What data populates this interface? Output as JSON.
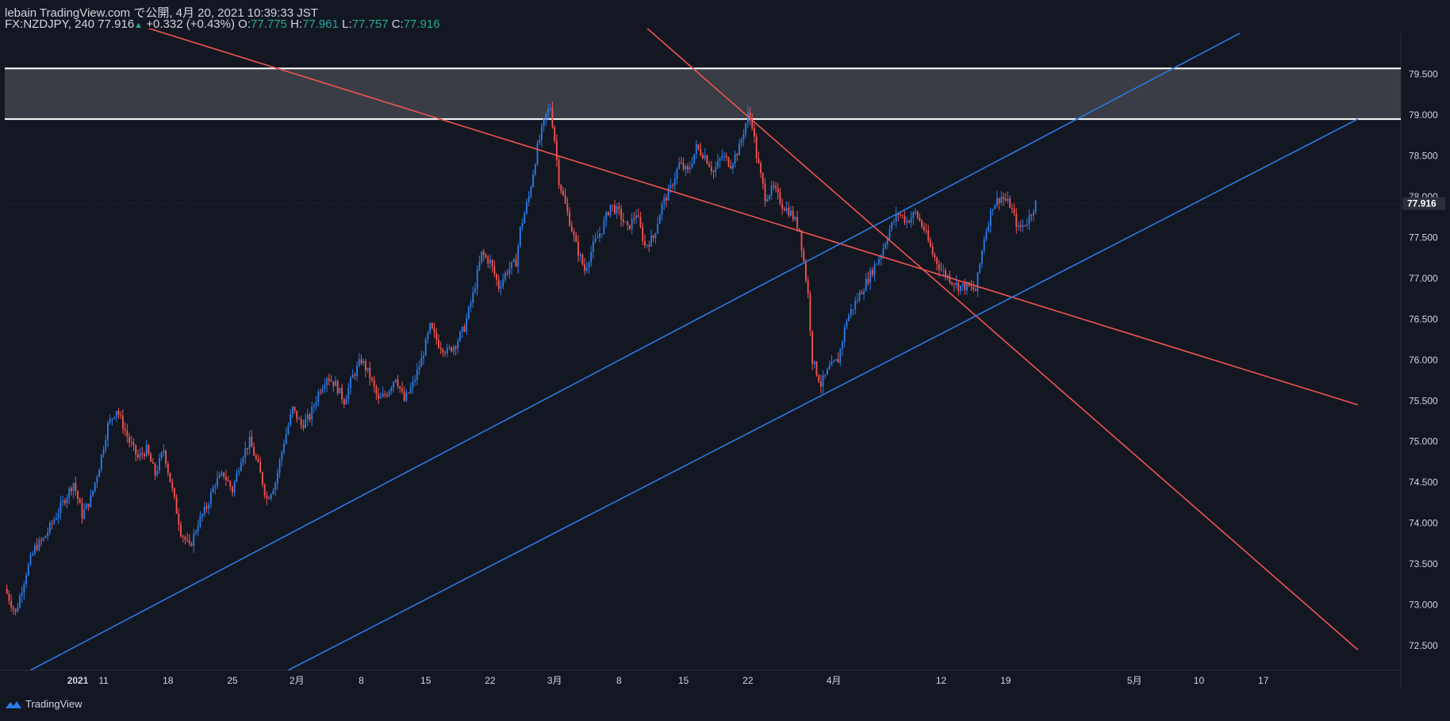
{
  "header": {
    "line1": "lebain TradingView.com で公開, 4月 20, 2021 10:39:33 JST",
    "symbol": "FX:NZDJPY, 240",
    "last": "77.916",
    "change": "+0.332 (+0.43%)",
    "o_label": "O:",
    "o_value": "77.775",
    "h_label": "H:",
    "h_value": "77.961",
    "l_label": "L:",
    "l_value": "77.757",
    "c_label": "C:",
    "c_value": "77.916"
  },
  "footer": {
    "brand": "TradingView"
  },
  "colors": {
    "background": "#131722",
    "bull": "#2a7ae2",
    "bear": "#f05350",
    "zone": "#3a3d46",
    "zone_border": "#ffffff",
    "text": "#d1d4dc",
    "accent_up": "#26a69a"
  },
  "chart_data": {
    "type": "candlestick",
    "price_axis": {
      "ticks": [
        "72.500",
        "73.000",
        "73.500",
        "74.000",
        "74.500",
        "75.000",
        "75.500",
        "76.000",
        "76.500",
        "77.000",
        "77.500",
        "78.000",
        "78.500",
        "79.000",
        "79.500"
      ],
      "current_price_label": "77.916",
      "range": [
        72.2,
        80.0
      ]
    },
    "time_axis": {
      "ticks": [
        {
          "label": "2021",
          "bar": 34
        },
        {
          "label": "11",
          "bar": 46
        },
        {
          "label": "18",
          "bar": 76
        },
        {
          "label": "25",
          "bar": 106
        },
        {
          "label": "2月",
          "bar": 136
        },
        {
          "label": "8",
          "bar": 166
        },
        {
          "label": "15",
          "bar": 196
        },
        {
          "label": "22",
          "bar": 226
        },
        {
          "label": "3月",
          "bar": 256
        },
        {
          "label": "8",
          "bar": 286
        },
        {
          "label": "15",
          "bar": 316
        },
        {
          "label": "22",
          "bar": 346
        },
        {
          "label": "4月",
          "bar": 386
        },
        {
          "label": "12",
          "bar": 436
        },
        {
          "label": "19",
          "bar": 466
        },
        {
          "label": "5月",
          "bar": 526
        },
        {
          "label": "10",
          "bar": 556
        },
        {
          "label": "17",
          "bar": 586
        }
      ],
      "bars_visible": 650
    },
    "resistance_zone": {
      "low": 78.95,
      "high": 79.57
    },
    "trendlines": [
      {
        "color": "bear",
        "from": {
          "bar": 50,
          "price": 80.2
        },
        "to": {
          "bar": 630,
          "price": 75.45
        }
      },
      {
        "color": "bear",
        "from": {
          "bar": 280,
          "price": 80.5
        },
        "to": {
          "bar": 630,
          "price": 72.45
        }
      },
      {
        "color": "blue",
        "from": {
          "bar": 12,
          "price": 72.2
        },
        "to": {
          "bar": 575,
          "price": 80.0
        }
      },
      {
        "color": "blue",
        "from": {
          "bar": 132,
          "price": 72.2
        },
        "to": {
          "bar": 630,
          "price": 78.95
        }
      }
    ],
    "price_path": [
      [
        0,
        73.2
      ],
      [
        5,
        72.9
      ],
      [
        10,
        73.4
      ],
      [
        14,
        73.7
      ],
      [
        18,
        73.8
      ],
      [
        22,
        74.0
      ],
      [
        28,
        74.3
      ],
      [
        32,
        74.5
      ],
      [
        36,
        74.1
      ],
      [
        40,
        74.3
      ],
      [
        44,
        74.7
      ],
      [
        48,
        75.2
      ],
      [
        52,
        75.4
      ],
      [
        58,
        75.0
      ],
      [
        62,
        74.8
      ],
      [
        66,
        74.9
      ],
      [
        70,
        74.6
      ],
      [
        74,
        74.9
      ],
      [
        78,
        74.4
      ],
      [
        82,
        73.9
      ],
      [
        86,
        73.7
      ],
      [
        90,
        74.0
      ],
      [
        94,
        74.2
      ],
      [
        98,
        74.5
      ],
      [
        102,
        74.6
      ],
      [
        106,
        74.4
      ],
      [
        110,
        74.8
      ],
      [
        114,
        75.0
      ],
      [
        118,
        74.7
      ],
      [
        122,
        74.3
      ],
      [
        126,
        74.5
      ],
      [
        130,
        75.0
      ],
      [
        134,
        75.4
      ],
      [
        138,
        75.2
      ],
      [
        142,
        75.3
      ],
      [
        146,
        75.6
      ],
      [
        150,
        75.8
      ],
      [
        154,
        75.7
      ],
      [
        158,
        75.5
      ],
      [
        162,
        75.8
      ],
      [
        166,
        76.0
      ],
      [
        170,
        75.8
      ],
      [
        174,
        75.5
      ],
      [
        178,
        75.6
      ],
      [
        182,
        75.8
      ],
      [
        186,
        75.5
      ],
      [
        190,
        75.7
      ],
      [
        194,
        76.0
      ],
      [
        198,
        76.4
      ],
      [
        202,
        76.2
      ],
      [
        206,
        76.1
      ],
      [
        210,
        76.2
      ],
      [
        214,
        76.4
      ],
      [
        218,
        76.8
      ],
      [
        222,
        77.3
      ],
      [
        226,
        77.2
      ],
      [
        230,
        76.9
      ],
      [
        234,
        77.1
      ],
      [
        238,
        77.2
      ],
      [
        240,
        77.6
      ],
      [
        244,
        78.0
      ],
      [
        248,
        78.6
      ],
      [
        252,
        79.0
      ],
      [
        254,
        79.1
      ],
      [
        256,
        78.7
      ],
      [
        258,
        78.2
      ],
      [
        262,
        77.8
      ],
      [
        266,
        77.4
      ],
      [
        270,
        77.1
      ],
      [
        274,
        77.4
      ],
      [
        278,
        77.6
      ],
      [
        282,
        77.9
      ],
      [
        286,
        77.8
      ],
      [
        290,
        77.6
      ],
      [
        294,
        77.8
      ],
      [
        298,
        77.4
      ],
      [
        302,
        77.5
      ],
      [
        306,
        77.9
      ],
      [
        310,
        78.1
      ],
      [
        314,
        78.4
      ],
      [
        318,
        78.3
      ],
      [
        322,
        78.6
      ],
      [
        326,
        78.5
      ],
      [
        330,
        78.3
      ],
      [
        334,
        78.5
      ],
      [
        338,
        78.4
      ],
      [
        342,
        78.6
      ],
      [
        346,
        79.0
      ],
      [
        348,
        78.9
      ],
      [
        350,
        78.5
      ],
      [
        354,
        78.0
      ],
      [
        358,
        78.1
      ],
      [
        362,
        77.9
      ],
      [
        366,
        77.8
      ],
      [
        370,
        77.6
      ],
      [
        374,
        76.8
      ],
      [
        376,
        76.0
      ],
      [
        380,
        75.7
      ],
      [
        384,
        75.9
      ],
      [
        388,
        76.0
      ],
      [
        392,
        76.5
      ],
      [
        396,
        76.7
      ],
      [
        400,
        76.9
      ],
      [
        404,
        77.1
      ],
      [
        408,
        77.3
      ],
      [
        412,
        77.6
      ],
      [
        416,
        77.8
      ],
      [
        420,
        77.7
      ],
      [
        424,
        77.8
      ],
      [
        428,
        77.6
      ],
      [
        432,
        77.3
      ],
      [
        436,
        77.1
      ],
      [
        440,
        77.0
      ],
      [
        444,
        76.9
      ],
      [
        448,
        76.9
      ],
      [
        452,
        76.85
      ],
      [
        456,
        77.5
      ],
      [
        460,
        77.9
      ],
      [
        464,
        78.0
      ],
      [
        468,
        77.9
      ],
      [
        472,
        77.6
      ],
      [
        476,
        77.7
      ],
      [
        480,
        77.92
      ]
    ]
  }
}
